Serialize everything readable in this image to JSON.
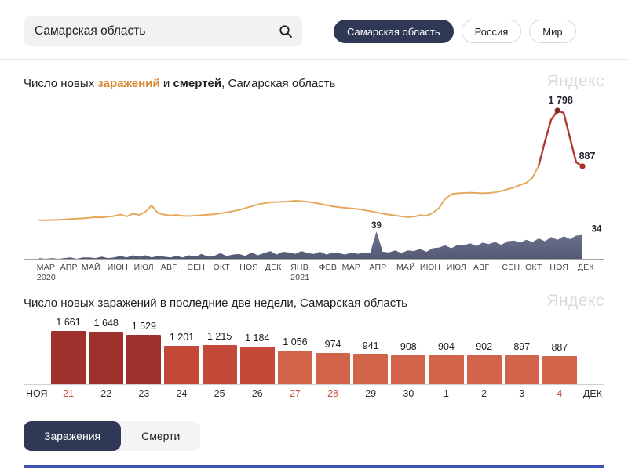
{
  "logo": "Яндекс",
  "search": {
    "value": "Самарская область"
  },
  "region_tabs": [
    {
      "label": "Самарская область",
      "active": true
    },
    {
      "label": "Россия",
      "active": false
    },
    {
      "label": "Мир",
      "active": false
    }
  ],
  "header1": {
    "pre": "Число новых ",
    "infections_word": "заражений",
    "mid": " и ",
    "deaths_word": "смертей",
    "post": ", Самарская область"
  },
  "header2": "Число новых заражений в последние две недели, Самарская область",
  "toggle": {
    "infections": "Заражения",
    "deaths": "Смерти"
  },
  "chart_data": [
    {
      "type": "line",
      "title": "Число новых заражений и смертей, Самарская область",
      "x_range": "МАР 2020 — ДЕК 2021",
      "months": [
        {
          "m": "МАР",
          "y": "2020",
          "p": 3.9
        },
        {
          "m": "АПР",
          "p": 7.8
        },
        {
          "m": "МАЙ",
          "p": 11.6
        },
        {
          "m": "ИЮН",
          "p": 16.2
        },
        {
          "m": "ИЮЛ",
          "p": 20.7
        },
        {
          "m": "АВГ",
          "p": 25.0
        },
        {
          "m": "СЕН",
          "p": 29.7
        },
        {
          "m": "ОКТ",
          "p": 34.1
        },
        {
          "m": "НОЯ",
          "p": 38.8
        },
        {
          "m": "ДЕК",
          "p": 43.0
        },
        {
          "m": "ЯНВ",
          "y": "2021",
          "p": 47.6
        },
        {
          "m": "ФЕВ",
          "p": 52.4
        },
        {
          "m": "МАР",
          "p": 56.4
        },
        {
          "m": "АПР",
          "p": 61.0
        },
        {
          "m": "МАЙ",
          "p": 65.8
        },
        {
          "m": "ИЮН",
          "p": 70.0
        },
        {
          "m": "ИЮЛ",
          "p": 74.5
        },
        {
          "m": "АВГ",
          "p": 78.8
        },
        {
          "m": "СЕН",
          "p": 83.9
        },
        {
          "m": "ОКТ",
          "p": 87.8
        },
        {
          "m": "НОЯ",
          "p": 92.2
        },
        {
          "m": "ДЕК",
          "p": 96.8
        }
      ],
      "series": [
        {
          "name": "заражения",
          "color": "#e5a95e",
          "recent_color": "#b13a2c",
          "recent_from_index": 80,
          "peak_label": "1 798",
          "last_label": "887",
          "peak_value": 1798,
          "last_value": 887,
          "ymax": 1798,
          "values": [
            2,
            4,
            6,
            10,
            16,
            22,
            28,
            34,
            42,
            55,
            48,
            62,
            70,
            95,
            65,
            110,
            90,
            140,
            244,
            120,
            95,
            80,
            88,
            75,
            70,
            78,
            85,
            92,
            100,
            115,
            130,
            150,
            170,
            200,
            230,
            260,
            280,
            295,
            300,
            305,
            310,
            321,
            315,
            305,
            290,
            270,
            250,
            230,
            215,
            205,
            195,
            185,
            170,
            150,
            130,
            110,
            95,
            80,
            65,
            55,
            60,
            85,
            75,
            120,
            200,
            350,
            430,
            445,
            450,
            455,
            450,
            445,
            450,
            460,
            480,
            510,
            540,
            580,
            615,
            700,
            900,
            1300,
            1650,
            1798,
            1760,
            1350,
            950,
            887
          ]
        },
        {
          "name": "смерти",
          "color_top": "#6e7391",
          "color_bottom": "#545973",
          "peak_label": "39",
          "last_label": "34",
          "peak_value": 39,
          "last_value": 34,
          "ymax": 39,
          "values": [
            1,
            0,
            1,
            0,
            1,
            2,
            0,
            2,
            2,
            1,
            3,
            1,
            2,
            4,
            2,
            5,
            3,
            5,
            2,
            4,
            3,
            2,
            4,
            2,
            5,
            3,
            7,
            3,
            4,
            8,
            4,
            6,
            7,
            4,
            9,
            5,
            8,
            11,
            6,
            10,
            9,
            7,
            11,
            8,
            7,
            10,
            6,
            9,
            8,
            6,
            9,
            7,
            9,
            8,
            39,
            10,
            9,
            12,
            8,
            12,
            11,
            14,
            10,
            15,
            16,
            19,
            15,
            20,
            19,
            22,
            18,
            23,
            21,
            24,
            20,
            25,
            26,
            23,
            27,
            24,
            29,
            25,
            31,
            27,
            32,
            28,
            33,
            34
          ]
        }
      ]
    },
    {
      "type": "bar",
      "title": "Число новых заражений в последние две недели, Самарская область",
      "categories": [
        "21",
        "22",
        "23",
        "24",
        "25",
        "26",
        "27",
        "28",
        "29",
        "30",
        "1",
        "2",
        "3",
        "4"
      ],
      "values": [
        1661,
        1648,
        1529,
        1201,
        1215,
        1184,
        1056,
        974,
        941,
        908,
        904,
        902,
        897,
        887
      ],
      "value_labels": [
        "1 661",
        "1 648",
        "1 529",
        "1 201",
        "1 215",
        "1 184",
        "1 056",
        "974",
        "941",
        "908",
        "904",
        "902",
        "897",
        "887"
      ],
      "bar_colors": [
        "#9e302e",
        "#9e302e",
        "#9e302e",
        "#c44838",
        "#c44838",
        "#c44838",
        "#d2644a",
        "#d2644a",
        "#d2644a",
        "#d2644a",
        "#d2644a",
        "#d2644a",
        "#d2644a",
        "#d2644a"
      ],
      "weekend_indices": [
        0,
        6,
        7,
        13
      ],
      "weekend_color": "#cf4b38",
      "axis_start": "НОЯ",
      "axis_end": "ДЕК",
      "ymax": 1661
    }
  ]
}
